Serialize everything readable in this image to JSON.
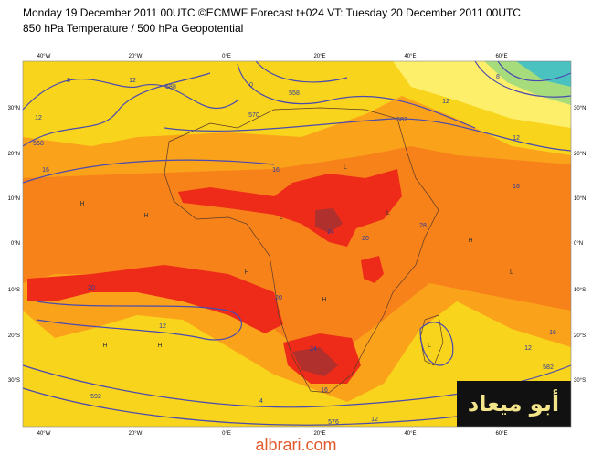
{
  "header": {
    "line1": "Monday 19 December 2011 00UTC ©ECMWF Forecast t+024 VT: Tuesday 20 December 2011 00UTC",
    "line2": "850 hPa Temperature / 500 hPa Geopotential"
  },
  "axes": {
    "longitudes": [
      "40°W",
      "20°W",
      "0°E",
      "20°E",
      "40°E",
      "60°E"
    ],
    "latitudes": [
      "30°N",
      "20°N",
      "10°N",
      "0°N",
      "10°S",
      "20°S",
      "30°S"
    ]
  },
  "contour_labels": [
    "8",
    "12",
    "588",
    "0",
    "558",
    "570",
    "12",
    "568",
    "16",
    "16",
    "582",
    "12",
    "8",
    "12",
    "16",
    "24",
    "20",
    "28",
    "20",
    "20",
    "12",
    "24",
    "16",
    "582",
    "12",
    "16",
    "592",
    "576",
    "12",
    "4"
  ],
  "pressure_centers": [
    "H",
    "H",
    "H",
    "L",
    "L",
    "L",
    "H",
    "L",
    "H",
    "H",
    "L",
    "H"
  ],
  "logo": "أبو ميعاد",
  "watermark": "albrari.com"
}
